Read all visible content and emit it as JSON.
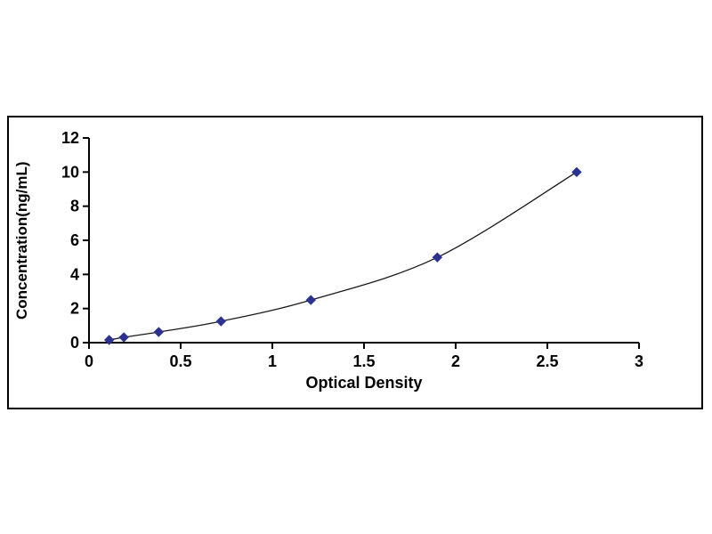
{
  "page": {
    "background": "#ffffff"
  },
  "chart_data": {
    "type": "line",
    "title": "",
    "xlabel": "Optical Density",
    "ylabel": "Concentration(ng/mL)",
    "x": [
      0.11,
      0.19,
      0.38,
      0.72,
      1.21,
      1.9,
      2.66
    ],
    "y": [
      0.156,
      0.312,
      0.625,
      1.25,
      2.5,
      5.0,
      10.0
    ],
    "xlim": [
      0,
      3
    ],
    "ylim": [
      0,
      12
    ],
    "xticks": [
      0,
      0.5,
      1,
      1.5,
      2,
      2.5,
      3
    ],
    "yticks": [
      0,
      2,
      4,
      6,
      8,
      10,
      12
    ],
    "grid": false,
    "legend": "none",
    "marker": "diamond",
    "colors": {
      "marker": "#2b3292",
      "line": "#1a1a1a",
      "axis": "#000000",
      "frame_border": "#000000",
      "background": "#ffffff"
    }
  }
}
